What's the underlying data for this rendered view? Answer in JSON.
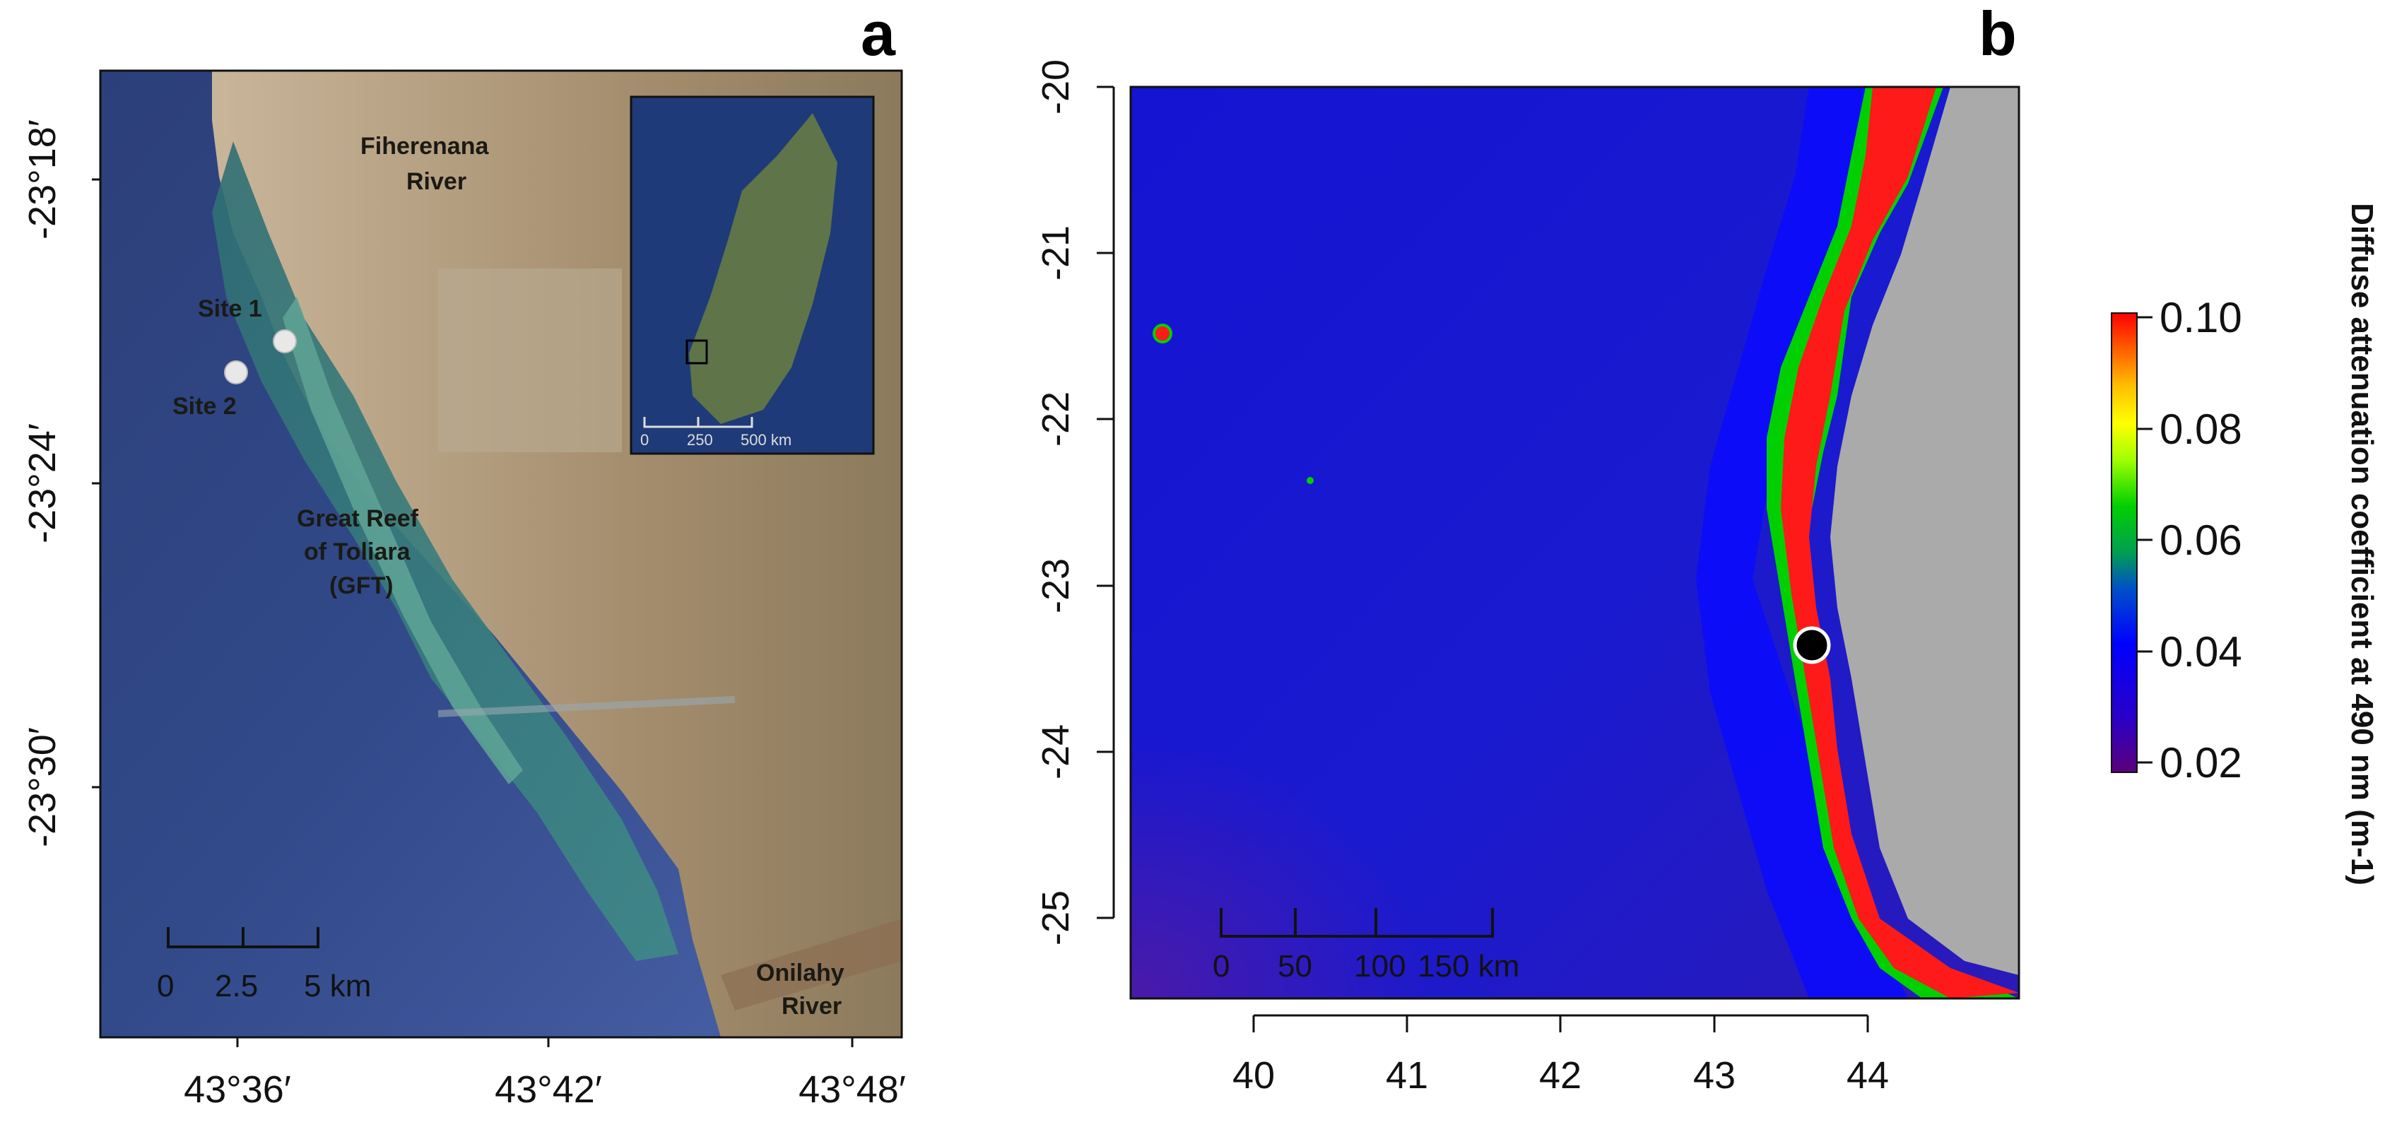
{
  "panel_a": {
    "letter": "a",
    "y_ticks": [
      "-23°18′",
      "-23°24′",
      "-23°30′"
    ],
    "x_ticks": [
      "43°36′",
      "43°42′",
      "43°48′"
    ],
    "labels": {
      "river_north_1": "Fiherenana",
      "river_north_2": "River",
      "site1": "Site 1",
      "site2": "Site 2",
      "reef_1": "Great Reef",
      "reef_2": "of Toliara",
      "reef_3": "(GFT)",
      "river_south_1": "Onilahy",
      "river_south_2": "River"
    },
    "scalebar": [
      "0",
      "2.5",
      "5 km"
    ],
    "inset_scalebar": [
      "0",
      "250",
      "500 km"
    ]
  },
  "panel_b": {
    "letter": "b",
    "y_ticks": [
      "-20",
      "-21",
      "-22",
      "-23",
      "-24",
      "-25"
    ],
    "x_ticks": [
      "40",
      "41",
      "42",
      "43",
      "44"
    ],
    "scalebar": [
      "0",
      "50",
      "100",
      "150 km"
    ],
    "colorbar_ticks": [
      "0.10",
      "0.08",
      "0.06",
      "0.04",
      "0.02"
    ],
    "colorbar_title": "Diffuse attenuation coefficient at 490 nm (m-1)",
    "colors": {
      "land": "#aaaaaa",
      "ocean": "#1a1ad6",
      "coastal": "#0000ff",
      "high": "#ff1a1a"
    }
  }
}
